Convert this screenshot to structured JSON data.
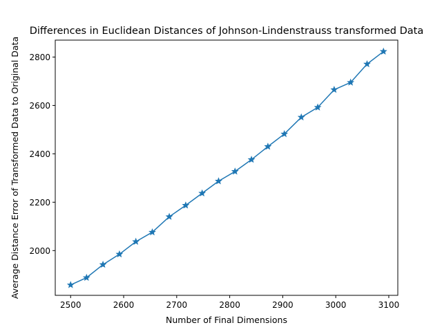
{
  "chart_data": {
    "type": "line",
    "title": "Differences in Euclidean Distances of Johnson-Lindenstrauss transformed Data",
    "xlabel": "Number of Final Dimensions",
    "ylabel": "Average Distance Error of Transformed Data to Original Data",
    "xlim": [
      2471,
      3117
    ],
    "ylim": [
      1815,
      2870
    ],
    "x_ticks": [
      2500,
      2600,
      2700,
      2800,
      2900,
      3000,
      3100
    ],
    "y_ticks": [
      2000,
      2200,
      2400,
      2600,
      2800
    ],
    "grid": false,
    "marker": "star",
    "color": "#1f77b4",
    "series": [
      {
        "x": [
          2500,
          2530,
          2561,
          2592,
          2623,
          2654,
          2686,
          2717,
          2748,
          2779,
          2810,
          2841,
          2872,
          2903,
          2935,
          2966,
          2997,
          3028,
          3059,
          3090
        ],
        "values": [
          1858,
          1888,
          1942,
          1985,
          2037,
          2076,
          2140,
          2187,
          2237,
          2287,
          2327,
          2376,
          2430,
          2482,
          2551,
          2592,
          2665,
          2695,
          2771,
          2823
        ]
      }
    ]
  }
}
